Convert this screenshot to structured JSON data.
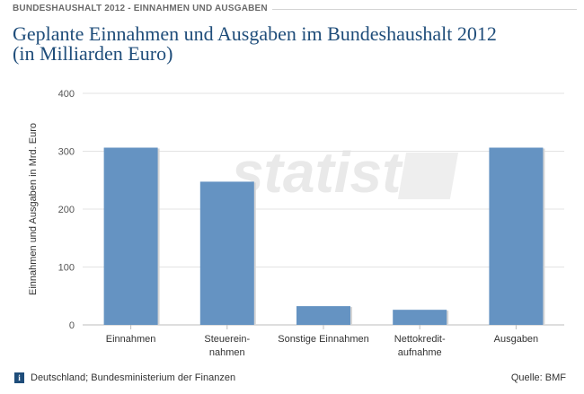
{
  "header": {
    "category": "BUNDESHAUSHALT 2012 - EINNAHMEN UND AUSGABEN",
    "title_line1": "Geplante Einnahmen und Ausgaben im Bundeshaushalt 2012",
    "title_line2": "(in Milliarden Euro)"
  },
  "chart_data": {
    "type": "bar",
    "title": "Geplante Einnahmen und Ausgaben im Bundeshaushalt 2012 (in Milliarden Euro)",
    "xlabel": "",
    "ylabel": "Einnahmen und Ausgaben in Mrd. Euro",
    "ylim": [
      0,
      400
    ],
    "yticks": [
      0,
      100,
      200,
      300,
      400
    ],
    "grid": true,
    "categories": [
      [
        "Einnahmen"
      ],
      [
        "Steuerein-",
        "nahmen"
      ],
      [
        "Sonstige Einnahmen"
      ],
      [
        "Nettokredit-",
        "aufnahme"
      ],
      [
        "Ausgaben"
      ]
    ],
    "values": [
      306.2,
      247.4,
      32.4,
      26.1,
      306.2
    ],
    "bar_color": "#6593c2",
    "watermark": "statista"
  },
  "footer": {
    "info_icon": "i",
    "source_left": "Deutschland; Bundesministerium der Finanzen",
    "source_right": "Quelle: BMF"
  }
}
